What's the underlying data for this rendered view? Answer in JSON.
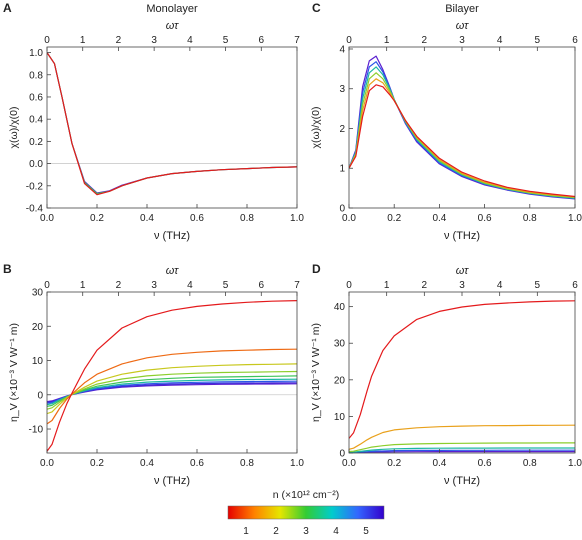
{
  "panels": [
    {
      "letter": "A",
      "title": "Monolayer",
      "xlabel": "ν (THz)",
      "toplabel": "ωτ",
      "ylabel": "χ(ω)/χ(0)",
      "xlim": [
        0,
        1.0
      ],
      "ylim": [
        -0.4,
        1.05
      ],
      "xticks": [
        "0.0",
        "0.2",
        "0.4",
        "0.6",
        "0.8",
        "1.0"
      ],
      "xtickvals": [
        0,
        0.2,
        0.4,
        0.6,
        0.8,
        1.0
      ],
      "topticks": [
        "0",
        "1",
        "2",
        "3",
        "4",
        "5",
        "6",
        "7"
      ],
      "toptickvals": [
        0,
        1,
        2,
        3,
        4,
        5,
        6,
        7
      ],
      "topmax": 7,
      "yticks": [
        "-0.4",
        "-0.2",
        "0.0",
        "0.2",
        "0.4",
        "0.6",
        "0.8",
        "1.0"
      ],
      "ytickvals": [
        -0.4,
        -0.2,
        0,
        0.2,
        0.4,
        0.6,
        0.8,
        1.0
      ],
      "zeroline": true
    },
    {
      "letter": "C",
      "title": "Bilayer",
      "xlabel": "ν (THz)",
      "toplabel": "ωτ",
      "ylabel": "χ(ω)/χ(0)",
      "xlim": [
        0,
        1.0
      ],
      "ylim": [
        0,
        4.05
      ],
      "xticks": [
        "0.0",
        "0.2",
        "0.4",
        "0.6",
        "0.8",
        "1.0"
      ],
      "xtickvals": [
        0,
        0.2,
        0.4,
        0.6,
        0.8,
        1.0
      ],
      "topticks": [
        "0",
        "1",
        "2",
        "3",
        "4",
        "5",
        "6"
      ],
      "toptickvals": [
        0,
        1,
        2,
        3,
        4,
        5,
        6
      ],
      "topmax": 6,
      "yticks": [
        "0",
        "1",
        "2",
        "3",
        "4"
      ],
      "ytickvals": [
        0,
        1,
        2,
        3,
        4
      ],
      "zeroline": false
    },
    {
      "letter": "B",
      "title": "",
      "xlabel": "ν (THz)",
      "toplabel": "ωτ",
      "ylabel": "η_V (×10⁻³ V W⁻¹ m)",
      "xlim": [
        0,
        1.0
      ],
      "ylim": [
        -17,
        30
      ],
      "xticks": [
        "0.0",
        "0.2",
        "0.4",
        "0.6",
        "0.8",
        "1.0"
      ],
      "xtickvals": [
        0,
        0.2,
        0.4,
        0.6,
        0.8,
        1.0
      ],
      "topticks": [
        "0",
        "1",
        "2",
        "3",
        "4",
        "5",
        "6",
        "7"
      ],
      "toptickvals": [
        0,
        1,
        2,
        3,
        4,
        5,
        6,
        7
      ],
      "topmax": 7,
      "yticks": [
        "-10",
        "0",
        "10",
        "20",
        "30"
      ],
      "ytickvals": [
        -10,
        0,
        10,
        20,
        30
      ],
      "zeroline": true
    },
    {
      "letter": "D",
      "title": "",
      "xlabel": "ν (THz)",
      "toplabel": "ωτ",
      "ylabel": "η_V (×10⁻³ V W⁻¹ m)",
      "xlim": [
        0,
        1.0
      ],
      "ylim": [
        0,
        44
      ],
      "xticks": [
        "0.0",
        "0.2",
        "0.4",
        "0.6",
        "0.8",
        "1.0"
      ],
      "xtickvals": [
        0,
        0.2,
        0.4,
        0.6,
        0.8,
        1.0
      ],
      "topticks": [
        "0",
        "1",
        "2",
        "3",
        "4",
        "5",
        "6"
      ],
      "toptickvals": [
        0,
        1,
        2,
        3,
        4,
        5,
        6
      ],
      "topmax": 6,
      "yticks": [
        "0",
        "10",
        "20",
        "30",
        "40"
      ],
      "ytickvals": [
        0,
        10,
        20,
        30,
        40
      ],
      "zeroline": false
    }
  ],
  "colorbar": {
    "label": "n (×10¹² cm⁻²)",
    "ticks": [
      "1",
      "2",
      "3",
      "4",
      "5"
    ],
    "tickvals": [
      1,
      2,
      3,
      4,
      5
    ],
    "range": [
      1,
      5
    ],
    "colors": [
      "#e60000",
      "#ff8000",
      "#e6e600",
      "#33cc33",
      "#00cccc",
      "#3366ff",
      "#3300cc"
    ]
  },
  "series_colors": [
    "#e41a1c",
    "#ee6a14",
    "#e9a11c",
    "#c8c81e",
    "#8cce2c",
    "#3ec45a",
    "#1cb9a2",
    "#1e90d6",
    "#2a56e8",
    "#3f2bd8",
    "#5a1fd0"
  ],
  "chart_data": [
    {
      "panel": "A",
      "type": "line",
      "title": "Monolayer",
      "xlabel": "ν (THz)",
      "ylabel": "χ(ω)/χ(0)",
      "xlim": [
        0,
        1.0
      ],
      "ylim": [
        -0.4,
        1.05
      ],
      "x": [
        0.0,
        0.03,
        0.06,
        0.1,
        0.15,
        0.2,
        0.25,
        0.3,
        0.4,
        0.5,
        0.6,
        0.7,
        0.8,
        0.9,
        1.0
      ],
      "series": [
        {
          "values": [
            1.0,
            0.9,
            0.6,
            0.18,
            -0.18,
            -0.28,
            -0.25,
            -0.2,
            -0.13,
            -0.09,
            -0.07,
            -0.055,
            -0.045,
            -0.035,
            -0.03
          ]
        },
        {
          "values": [
            1.0,
            0.9,
            0.6,
            0.18,
            -0.17,
            -0.27,
            -0.25,
            -0.2,
            -0.13,
            -0.09,
            -0.07,
            -0.055,
            -0.045,
            -0.035,
            -0.03
          ]
        },
        {
          "values": [
            1.0,
            0.9,
            0.6,
            0.18,
            -0.16,
            -0.265,
            -0.245,
            -0.195,
            -0.13,
            -0.09,
            -0.07,
            -0.055,
            -0.045,
            -0.035,
            -0.03
          ]
        }
      ]
    },
    {
      "panel": "C",
      "type": "line",
      "title": "Bilayer",
      "xlabel": "ν (THz)",
      "ylabel": "χ(ω)/χ(0)",
      "xlim": [
        0,
        1.0
      ],
      "ylim": [
        0,
        4.05
      ],
      "x": [
        0.0,
        0.03,
        0.06,
        0.09,
        0.12,
        0.15,
        0.18,
        0.2,
        0.25,
        0.3,
        0.4,
        0.5,
        0.6,
        0.7,
        0.8,
        0.9,
        1.0
      ],
      "series": [
        {
          "values": [
            1.0,
            1.3,
            2.3,
            2.95,
            3.1,
            3.05,
            2.85,
            2.7,
            2.2,
            1.8,
            1.25,
            0.9,
            0.68,
            0.52,
            0.42,
            0.35,
            0.29
          ]
        },
        {
          "values": [
            1.0,
            1.33,
            2.45,
            3.1,
            3.25,
            3.15,
            2.9,
            2.7,
            2.2,
            1.78,
            1.22,
            0.87,
            0.65,
            0.5,
            0.4,
            0.33,
            0.28
          ]
        },
        {
          "values": [
            1.0,
            1.36,
            2.6,
            3.25,
            3.4,
            3.25,
            2.95,
            2.72,
            2.18,
            1.75,
            1.19,
            0.85,
            0.63,
            0.48,
            0.38,
            0.31,
            0.26
          ]
        },
        {
          "values": [
            1.0,
            1.4,
            2.75,
            3.4,
            3.55,
            3.35,
            3.0,
            2.73,
            2.16,
            1.72,
            1.16,
            0.83,
            0.61,
            0.47,
            0.37,
            0.3,
            0.25
          ]
        },
        {
          "values": [
            1.0,
            1.43,
            2.9,
            3.55,
            3.68,
            3.42,
            3.03,
            2.73,
            2.14,
            1.69,
            1.13,
            0.81,
            0.6,
            0.46,
            0.36,
            0.29,
            0.24
          ]
        },
        {
          "values": [
            1.0,
            1.46,
            3.05,
            3.7,
            3.82,
            3.48,
            3.05,
            2.73,
            2.12,
            1.66,
            1.11,
            0.79,
            0.58,
            0.45,
            0.35,
            0.28,
            0.23
          ]
        }
      ]
    },
    {
      "panel": "B",
      "type": "line",
      "xlabel": "ν (THz)",
      "ylabel": "η_V (×10⁻³ V W⁻¹ m)",
      "xlim": [
        0,
        1.0
      ],
      "ylim": [
        -17,
        30
      ],
      "x": [
        0.0,
        0.02,
        0.05,
        0.08,
        0.1,
        0.15,
        0.2,
        0.3,
        0.4,
        0.5,
        0.6,
        0.7,
        0.8,
        0.9,
        1.0
      ],
      "series": [
        {
          "values": [
            -16.5,
            -14.5,
            -8,
            -2.5,
            0.5,
            7.5,
            13,
            19.5,
            22.8,
            24.7,
            25.8,
            26.5,
            27.0,
            27.3,
            27.5
          ]
        },
        {
          "values": [
            -8.5,
            -7.5,
            -4,
            -1.2,
            0.2,
            3.5,
            6,
            9,
            10.8,
            11.8,
            12.4,
            12.8,
            13.0,
            13.2,
            13.3
          ]
        },
        {
          "values": [
            -5.5,
            -5,
            -2.8,
            -0.9,
            0.1,
            2.2,
            4,
            6,
            7.2,
            7.9,
            8.3,
            8.6,
            8.8,
            8.9,
            9.0
          ]
        },
        {
          "values": [
            -4.2,
            -3.8,
            -2.2,
            -0.7,
            0.1,
            1.7,
            3.1,
            4.6,
            5.5,
            6.0,
            6.3,
            6.5,
            6.6,
            6.7,
            6.8
          ]
        },
        {
          "values": [
            -3.4,
            -3.1,
            -1.8,
            -0.6,
            0.1,
            1.4,
            2.5,
            3.7,
            4.4,
            4.8,
            5.1,
            5.2,
            5.3,
            5.4,
            5.5
          ]
        },
        {
          "values": [
            -2.9,
            -2.6,
            -1.5,
            -0.5,
            0.05,
            1.2,
            2.1,
            3.1,
            3.7,
            4.0,
            4.2,
            4.35,
            4.45,
            4.5,
            4.55
          ]
        },
        {
          "values": [
            -2.5,
            -2.3,
            -1.3,
            -0.45,
            0.05,
            1.0,
            1.8,
            2.7,
            3.2,
            3.5,
            3.65,
            3.75,
            3.85,
            3.9,
            3.95
          ]
        },
        {
          "values": [
            -2.2,
            -2.0,
            -1.2,
            -0.4,
            0.05,
            0.9,
            1.6,
            2.4,
            2.85,
            3.1,
            3.25,
            3.35,
            3.4,
            3.45,
            3.5
          ]
        },
        {
          "values": [
            -2.0,
            -1.8,
            -1.1,
            -0.35,
            0.05,
            0.8,
            1.45,
            2.2,
            2.6,
            2.8,
            2.95,
            3.05,
            3.1,
            3.15,
            3.2
          ]
        }
      ]
    },
    {
      "panel": "D",
      "type": "line",
      "xlabel": "ν (THz)",
      "ylabel": "η_V (×10⁻³ V W⁻¹ m)",
      "xlim": [
        0,
        1.0
      ],
      "ylim": [
        0,
        44
      ],
      "x": [
        0.0,
        0.02,
        0.05,
        0.08,
        0.1,
        0.15,
        0.2,
        0.3,
        0.4,
        0.5,
        0.6,
        0.7,
        0.8,
        0.9,
        1.0
      ],
      "series": [
        {
          "values": [
            4.0,
            5.5,
            10.5,
            17,
            21,
            28,
            32,
            36.5,
            38.7,
            39.9,
            40.6,
            41.0,
            41.3,
            41.5,
            41.6
          ]
        },
        {
          "values": [
            1.0,
            1.3,
            2.4,
            3.6,
            4.3,
            5.6,
            6.3,
            6.9,
            7.2,
            7.35,
            7.45,
            7.5,
            7.55,
            7.58,
            7.6
          ]
        },
        {
          "values": [
            0.4,
            0.5,
            0.9,
            1.3,
            1.6,
            2.0,
            2.3,
            2.5,
            2.6,
            2.65,
            2.7,
            2.72,
            2.74,
            2.75,
            2.76
          ]
        },
        {
          "values": [
            0.2,
            0.25,
            0.45,
            0.65,
            0.8,
            1.0,
            1.15,
            1.25,
            1.3,
            1.33,
            1.35,
            1.36,
            1.37,
            1.38,
            1.38
          ]
        },
        {
          "values": [
            0.1,
            0.12,
            0.25,
            0.35,
            0.45,
            0.55,
            0.65,
            0.7,
            0.72,
            0.74,
            0.75,
            0.76,
            0.76,
            0.77,
            0.77
          ]
        },
        {
          "values": [
            0.05,
            0.06,
            0.12,
            0.18,
            0.22,
            0.28,
            0.32,
            0.35,
            0.37,
            0.38,
            0.38,
            0.39,
            0.39,
            0.39,
            0.39
          ]
        }
      ]
    }
  ]
}
